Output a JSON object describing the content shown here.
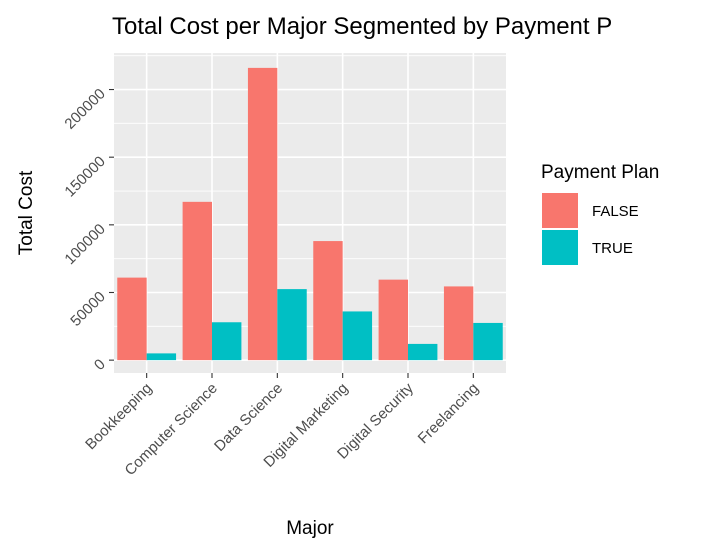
{
  "chart_data": {
    "type": "bar",
    "title": "Total Cost per Major Segmented by Payment P",
    "xlabel": "Major",
    "ylabel": "Total Cost",
    "categories": [
      "Bookkeeping",
      "Computer Science",
      "Data Science",
      "Digital Marketing",
      "Digital Security",
      "Freelancing"
    ],
    "series": [
      {
        "name": "FALSE",
        "color": "#F8766D",
        "values": [
          61000,
          117000,
          216000,
          88000,
          59500,
          54500
        ]
      },
      {
        "name": "TRUE",
        "color": "#00BFC4",
        "values": [
          5000,
          28000,
          52500,
          36000,
          12000,
          27500
        ]
      }
    ],
    "ylim": [
      -9500,
      227000
    ],
    "yticks": [
      0,
      50000,
      100000,
      150000,
      200000
    ],
    "ytick_labels": [
      "0",
      "50000",
      "100000",
      "150000",
      "200000"
    ],
    "legend": {
      "title": "Payment Plan",
      "position": "right"
    },
    "grid": true,
    "panel_background": "#EBEBEB"
  }
}
